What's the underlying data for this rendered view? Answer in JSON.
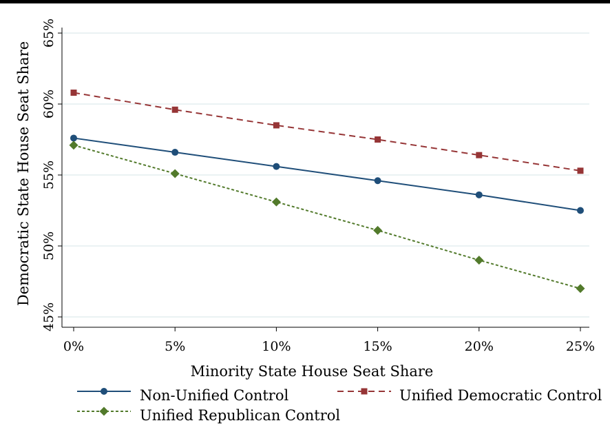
{
  "chart_data": {
    "type": "line",
    "xlabel": "Minority State House Seat Share",
    "ylabel": "Democratic State House Seat Share",
    "x": [
      0,
      5,
      10,
      15,
      20,
      25
    ],
    "x_tick_labels": [
      "0%",
      "5%",
      "10%",
      "15%",
      "20%",
      "25%"
    ],
    "y_ticks": [
      45,
      50,
      55,
      60,
      65
    ],
    "y_tick_labels": [
      "45%",
      "50%",
      "55%",
      "60%",
      "65%"
    ],
    "xlim": [
      0,
      25
    ],
    "ylim": [
      45,
      65
    ],
    "grid": true,
    "legend_placement": "bottom",
    "series": [
      {
        "name": "Non-Unified Control",
        "values": [
          57.6,
          56.6,
          55.6,
          54.6,
          53.6,
          52.5
        ],
        "color": "#1f4e79",
        "dash": "solid",
        "marker": "circle"
      },
      {
        "name": "Unified Democratic Control",
        "values": [
          60.8,
          59.6,
          58.5,
          57.5,
          56.4,
          55.3
        ],
        "color": "#963536",
        "dash": "dashed",
        "marker": "square"
      },
      {
        "name": "Unified Republican Control",
        "values": [
          57.1,
          55.1,
          53.1,
          51.1,
          49.0,
          47.0
        ],
        "color": "#527a2b",
        "dash": "dotted",
        "marker": "diamond"
      }
    ]
  },
  "colors": {
    "plot_background": "#ffffff",
    "outer_background": "#ffffff",
    "grid": "#eaf2f3",
    "top_rule": "#000000"
  }
}
